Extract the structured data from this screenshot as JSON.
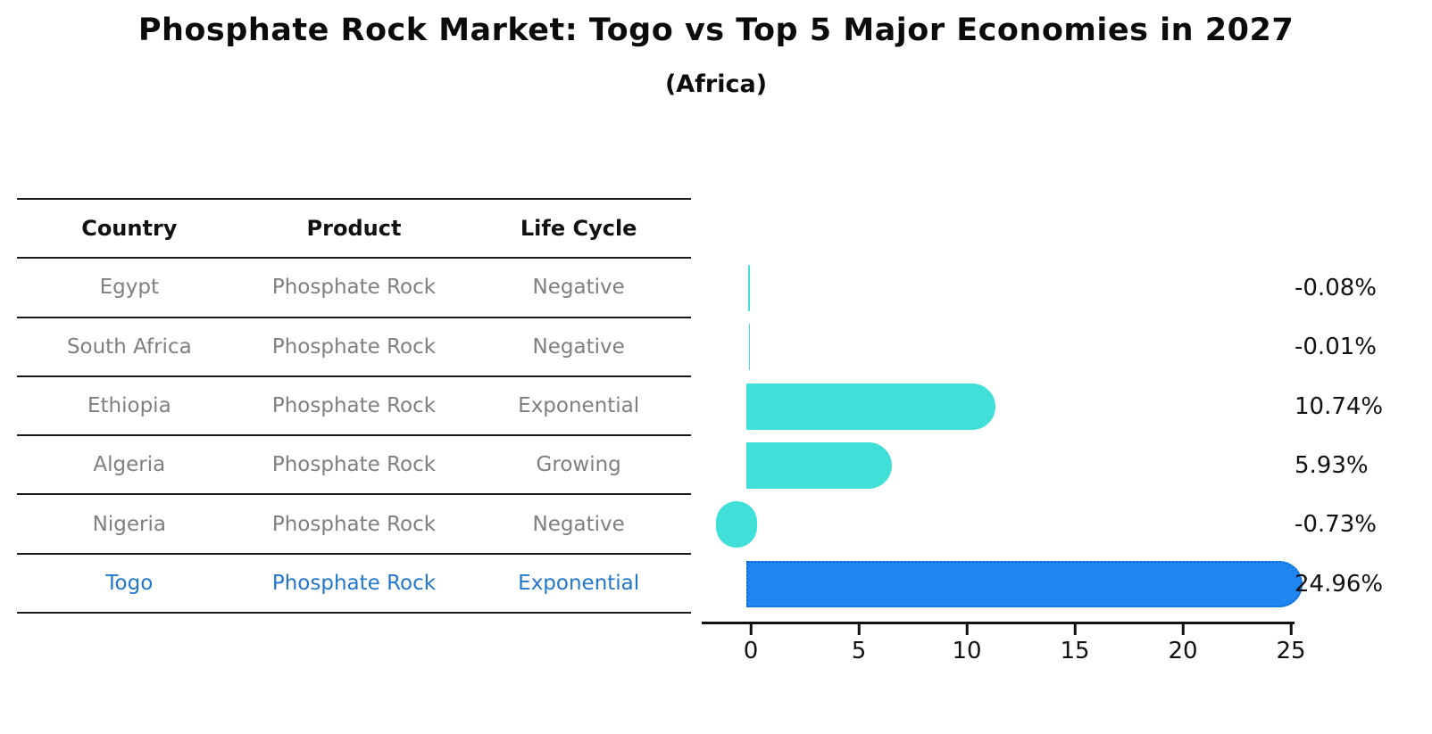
{
  "title": "Phosphate Rock Market: Togo vs Top 5 Major Economies in 2027",
  "subtitle": "(Africa)",
  "table": {
    "columns": [
      "Country",
      "Product",
      "Life Cycle"
    ],
    "rows": [
      {
        "country": "Egypt",
        "product": "Phosphate Rock",
        "life_cycle": "Negative",
        "highlight": false
      },
      {
        "country": "South Africa",
        "product": "Phosphate Rock",
        "life_cycle": "Negative",
        "highlight": false
      },
      {
        "country": "Ethiopia",
        "product": "Phosphate Rock",
        "life_cycle": "Exponential",
        "highlight": false
      },
      {
        "country": "Algeria",
        "product": "Phosphate Rock",
        "life_cycle": "Growing",
        "highlight": false
      },
      {
        "country": "Nigeria",
        "product": "Phosphate Rock",
        "life_cycle": "Negative",
        "highlight": false
      },
      {
        "country": "Togo",
        "product": "Phosphate Rock",
        "life_cycle": "Exponential",
        "highlight": true
      }
    ]
  },
  "chart_data": {
    "type": "bar",
    "orientation": "horizontal",
    "title": "Phosphate Rock Market: Togo vs Top 5 Major Economies in 2027 (Africa)",
    "categories": [
      "Egypt",
      "South Africa",
      "Ethiopia",
      "Algeria",
      "Nigeria",
      "Togo"
    ],
    "values": [
      -0.08,
      -0.01,
      10.74,
      5.93,
      -0.73,
      24.96
    ],
    "value_labels": [
      "-0.08%",
      "-0.01%",
      "10.74%",
      "5.93%",
      "-0.73%",
      "24.96%"
    ],
    "xticks": [
      0,
      5,
      10,
      15,
      20,
      25
    ],
    "xlim": [
      -2.4,
      25.6
    ],
    "grid": false,
    "legend": false,
    "highlight_index": 5,
    "colors": {
      "bar": "#40E0D8",
      "highlight_bar": "#1E86EE",
      "highlight_border": "#0F6AD8",
      "axis": "#111111",
      "label_text": "#111111"
    }
  },
  "colors": {
    "muted_text": "#7f7f7f",
    "highlight_text": "#2277cc",
    "line": "#1a1a1a"
  }
}
